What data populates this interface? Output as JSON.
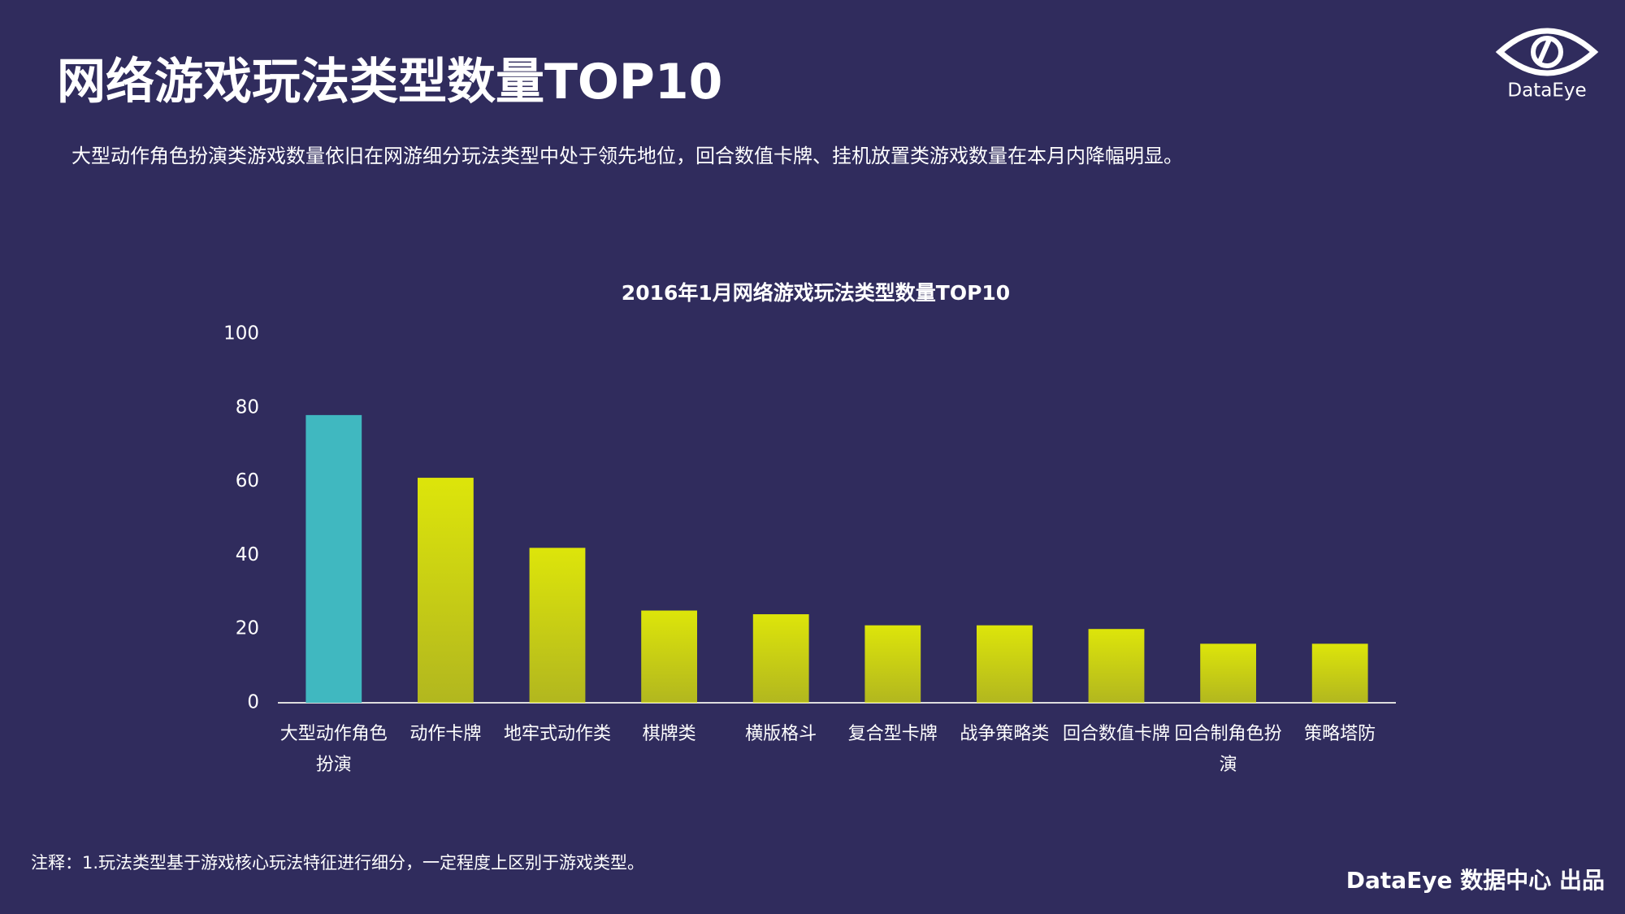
{
  "header": {
    "title": "网络游戏玩法类型数量TOP10",
    "description": "大型动作角色扮演类游戏数量依旧在网游细分玩法类型中处于领先地位，回合数值卡牌、挂机放置类游戏数量在本月内降幅明显。",
    "logo": "DataEye"
  },
  "chart_data": {
    "type": "bar",
    "title": "2016年1月网络游戏玩法类型数量TOP10",
    "categories": [
      "大型动作角色扮演",
      "动作卡牌",
      "地牢式动作类",
      "棋牌类",
      "横版格斗",
      "复合型卡牌",
      "战争策略类",
      "回合数值卡牌",
      "回合制角色扮演",
      "策略塔防"
    ],
    "values": [
      78,
      61,
      42,
      25,
      24,
      21,
      21,
      20,
      16,
      16
    ],
    "colors": [
      "#40b8c0",
      "#dde50a",
      "#dde50a",
      "#dde50a",
      "#dde50a",
      "#dde50a",
      "#dde50a",
      "#dde50a",
      "#dde50a",
      "#dde50a"
    ],
    "ylim": [
      0,
      100
    ],
    "yticks": [
      0,
      20,
      40,
      60,
      80,
      100
    ],
    "grid": false
  },
  "footer": {
    "note": "注释：1.玩法类型基于游戏核心玩法特征进行细分，一定程度上区别于游戏类型。",
    "credit": "DataEye 数据中心 出品"
  }
}
